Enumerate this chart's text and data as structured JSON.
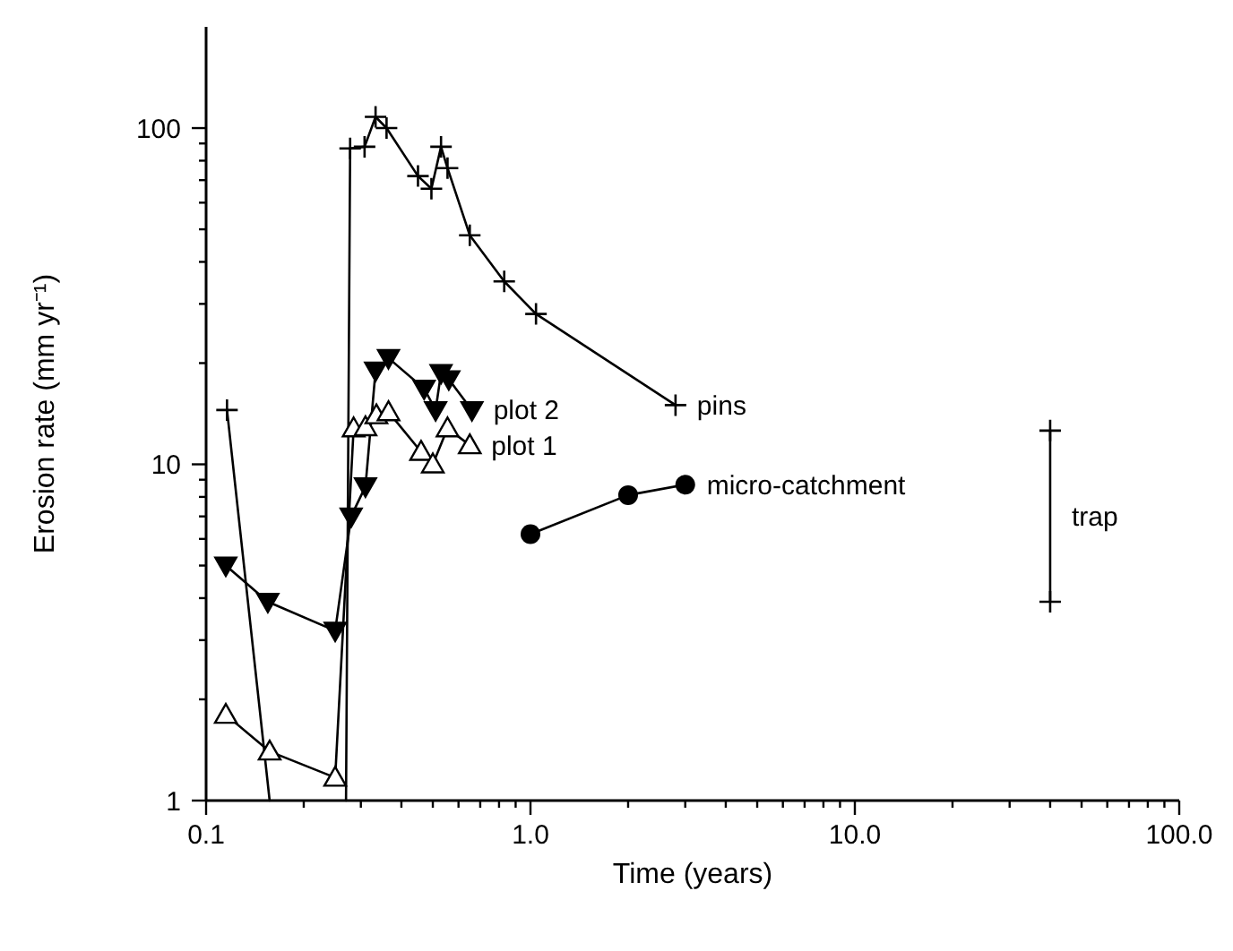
{
  "chart_data": {
    "type": "line",
    "xlabel": "Time (years)",
    "ylabel": "Erosion rate (mm yr⁻¹)",
    "log": "xy",
    "grid": false,
    "xlim": [
      0.1,
      100
    ],
    "ylim": [
      1,
      200
    ],
    "xticks": [
      {
        "value": 0.1,
        "label": "0.1"
      },
      {
        "value": 0.2,
        "label": null
      },
      {
        "value": 0.3,
        "label": null
      },
      {
        "value": 0.4,
        "label": null
      },
      {
        "value": 0.5,
        "label": null
      },
      {
        "value": 0.6,
        "label": null
      },
      {
        "value": 0.7,
        "label": null
      },
      {
        "value": 0.8,
        "label": null
      },
      {
        "value": 0.9,
        "label": null
      },
      {
        "value": 1,
        "label": "1.0"
      },
      {
        "value": 2,
        "label": null
      },
      {
        "value": 3,
        "label": null
      },
      {
        "value": 4,
        "label": null
      },
      {
        "value": 5,
        "label": null
      },
      {
        "value": 6,
        "label": null
      },
      {
        "value": 7,
        "label": null
      },
      {
        "value": 8,
        "label": null
      },
      {
        "value": 9,
        "label": null
      },
      {
        "value": 10,
        "label": "10.0"
      },
      {
        "value": 20,
        "label": null
      },
      {
        "value": 30,
        "label": null
      },
      {
        "value": 40,
        "label": null
      },
      {
        "value": 50,
        "label": null
      },
      {
        "value": 60,
        "label": null
      },
      {
        "value": 70,
        "label": null
      },
      {
        "value": 80,
        "label": null
      },
      {
        "value": 90,
        "label": null
      },
      {
        "value": 100,
        "label": "100.0"
      }
    ],
    "yticks": [
      1,
      {
        "value": 2,
        "label": null
      },
      {
        "value": 3,
        "label": null
      },
      {
        "value": 4,
        "label": null
      },
      {
        "value": 5,
        "label": null
      },
      {
        "value": 6,
        "label": null
      },
      {
        "value": 7,
        "label": null
      },
      {
        "value": 8,
        "label": null
      },
      {
        "value": 9,
        "label": null
      },
      10,
      {
        "value": 20,
        "label": null
      },
      {
        "value": 30,
        "label": null
      },
      {
        "value": 40,
        "label": null
      },
      {
        "value": 50,
        "label": null
      },
      {
        "value": 60,
        "label": null
      },
      {
        "value": 70,
        "label": null
      },
      {
        "value": 80,
        "label": null
      },
      {
        "value": 90,
        "label": null
      },
      100
    ],
    "series": [
      {
        "name": "pins",
        "color": "#000000",
        "marker": "cross",
        "x": [
          0.116,
          0.2,
          0.278,
          0.308,
          0.333,
          0.36,
          0.45,
          0.495,
          0.53,
          0.555,
          0.65,
          0.83,
          1.04,
          2.8
        ],
        "values": [
          14.5,
          null,
          87,
          88,
          108,
          100,
          72,
          66,
          88,
          76,
          48,
          35,
          28,
          15
        ]
      },
      {
        "color": "#000000",
        "marker": "none",
        "x": [
          0.116,
          0.157
        ],
        "values": [
          14.5,
          1
        ]
      },
      {
        "color": "#000000",
        "marker": "none",
        "x": [
          0.27,
          0.278
        ],
        "values": [
          1,
          87
        ]
      },
      {
        "name": "plot 2",
        "color": "#000000",
        "marker": "triangle-down",
        "x": [
          0.115,
          0.155,
          0.25,
          0.28,
          0.31,
          0.333,
          0.365,
          0.47,
          0.51,
          0.53,
          0.56,
          0.66
        ],
        "values": [
          5,
          3.9,
          3.2,
          7,
          8.6,
          19,
          20.7,
          16.8,
          14.5,
          18.7,
          17.9,
          14.5
        ]
      },
      {
        "name": "plot 1",
        "color": "#000000",
        "marker": "triangle",
        "x": [
          0.115,
          0.157,
          0.25,
          0.285,
          0.31,
          0.335,
          0.365,
          0.46,
          0.5,
          0.555,
          0.65
        ],
        "values": [
          1.8,
          1.4,
          1.17,
          12.8,
          12.9,
          14,
          14.3,
          10.9,
          10,
          12.8,
          11.4
        ]
      },
      {
        "name": "micro-catchment",
        "color": "#000000",
        "marker": "circle",
        "x": [
          1,
          2,
          3
        ],
        "values": [
          6.2,
          8.1,
          8.7
        ]
      },
      {
        "name": "trap",
        "color": "#000000",
        "marker": "cross",
        "x": [
          40,
          40
        ],
        "values": [
          3.9,
          12.6
        ]
      }
    ]
  }
}
